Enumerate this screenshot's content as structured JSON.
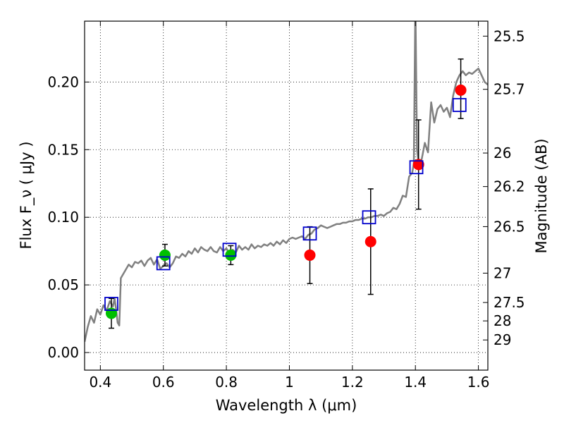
{
  "chart_data": {
    "type": "scatter",
    "xlabel": "Wavelength  λ (μm)",
    "ylabel": "Flux  F_ν  ( μJy )",
    "y2label": "Magnitude (AB)",
    "xlim": [
      0.35,
      1.63
    ],
    "ylim": [
      -0.013,
      0.245
    ],
    "grid": true,
    "x_ticks": [
      {
        "value": 0.4,
        "label": "0.4"
      },
      {
        "value": 0.6,
        "label": "0.6"
      },
      {
        "value": 0.8,
        "label": "0.8"
      },
      {
        "value": 1.0,
        "label": "1"
      },
      {
        "value": 1.2,
        "label": "1.2"
      },
      {
        "value": 1.4,
        "label": "1.4"
      },
      {
        "value": 1.6,
        "label": "1.6"
      }
    ],
    "y_ticks": [
      {
        "value": 0.0,
        "label": "0.00"
      },
      {
        "value": 0.05,
        "label": "0.05"
      },
      {
        "value": 0.1,
        "label": "0.10"
      },
      {
        "value": 0.15,
        "label": "0.15"
      },
      {
        "value": 0.2,
        "label": "0.20"
      }
    ],
    "mag_ticks": [
      {
        "flux": 0.2339,
        "label": "25.5"
      },
      {
        "flux": 0.1946,
        "label": "25.7"
      },
      {
        "flux": 0.1475,
        "label": "26"
      },
      {
        "flux": 0.1227,
        "label": "26.2"
      },
      {
        "flux": 0.0931,
        "label": "26.5"
      },
      {
        "flux": 0.0587,
        "label": "27"
      },
      {
        "flux": 0.037,
        "label": "27.5"
      },
      {
        "flux": 0.0234,
        "label": "28"
      },
      {
        "flux": 0.0093,
        "label": "29"
      }
    ],
    "colors": {
      "model": "#808080",
      "green_points": "#00c000",
      "red_points": "#ff0000",
      "model_boxes": "#0000cc",
      "errorbar": "#000000"
    },
    "series": [
      {
        "type": "line",
        "points": [
          [
            0.35,
            0.008
          ],
          [
            0.36,
            0.019
          ],
          [
            0.37,
            0.027
          ],
          [
            0.38,
            0.022
          ],
          [
            0.39,
            0.032
          ],
          [
            0.4,
            0.028
          ],
          [
            0.41,
            0.035
          ],
          [
            0.42,
            0.031
          ],
          [
            0.43,
            0.038
          ],
          [
            0.44,
            0.034
          ],
          [
            0.445,
            0.04
          ],
          [
            0.45,
            0.032
          ],
          [
            0.455,
            0.022
          ],
          [
            0.46,
            0.02
          ],
          [
            0.465,
            0.055
          ],
          [
            0.47,
            0.057
          ],
          [
            0.48,
            0.061
          ],
          [
            0.49,
            0.065
          ],
          [
            0.5,
            0.063
          ],
          [
            0.51,
            0.067
          ],
          [
            0.52,
            0.066
          ],
          [
            0.53,
            0.068
          ],
          [
            0.54,
            0.064
          ],
          [
            0.55,
            0.068
          ],
          [
            0.56,
            0.07
          ],
          [
            0.57,
            0.065
          ],
          [
            0.58,
            0.069
          ],
          [
            0.59,
            0.062
          ],
          [
            0.6,
            0.064
          ],
          [
            0.61,
            0.066
          ],
          [
            0.62,
            0.063
          ],
          [
            0.63,
            0.066
          ],
          [
            0.64,
            0.071
          ],
          [
            0.65,
            0.07
          ],
          [
            0.66,
            0.073
          ],
          [
            0.67,
            0.071
          ],
          [
            0.68,
            0.075
          ],
          [
            0.69,
            0.073
          ],
          [
            0.7,
            0.077
          ],
          [
            0.71,
            0.074
          ],
          [
            0.72,
            0.078
          ],
          [
            0.73,
            0.076
          ],
          [
            0.74,
            0.075
          ],
          [
            0.75,
            0.078
          ],
          [
            0.76,
            0.075
          ],
          [
            0.77,
            0.074
          ],
          [
            0.78,
            0.078
          ],
          [
            0.79,
            0.075
          ],
          [
            0.8,
            0.077
          ],
          [
            0.81,
            0.073
          ],
          [
            0.82,
            0.076
          ],
          [
            0.83,
            0.074
          ],
          [
            0.84,
            0.079
          ],
          [
            0.85,
            0.076
          ],
          [
            0.86,
            0.078
          ],
          [
            0.87,
            0.076
          ],
          [
            0.88,
            0.08
          ],
          [
            0.89,
            0.077
          ],
          [
            0.9,
            0.079
          ],
          [
            0.91,
            0.078
          ],
          [
            0.92,
            0.08
          ],
          [
            0.93,
            0.079
          ],
          [
            0.94,
            0.081
          ],
          [
            0.95,
            0.079
          ],
          [
            0.96,
            0.082
          ],
          [
            0.97,
            0.08
          ],
          [
            0.98,
            0.083
          ],
          [
            0.99,
            0.081
          ],
          [
            1.0,
            0.084
          ],
          [
            1.01,
            0.085
          ],
          [
            1.02,
            0.084
          ],
          [
            1.03,
            0.085
          ],
          [
            1.04,
            0.086
          ],
          [
            1.05,
            0.084
          ],
          [
            1.06,
            0.087
          ],
          [
            1.07,
            0.088
          ],
          [
            1.08,
            0.091
          ],
          [
            1.09,
            0.092
          ],
          [
            1.1,
            0.094
          ],
          [
            1.11,
            0.093
          ],
          [
            1.12,
            0.092
          ],
          [
            1.13,
            0.093
          ],
          [
            1.14,
            0.094
          ],
          [
            1.15,
            0.095
          ],
          [
            1.16,
            0.095
          ],
          [
            1.17,
            0.096
          ],
          [
            1.18,
            0.096
          ],
          [
            1.19,
            0.097
          ],
          [
            1.2,
            0.097
          ],
          [
            1.21,
            0.098
          ],
          [
            1.22,
            0.098
          ],
          [
            1.23,
            0.099
          ],
          [
            1.24,
            0.099
          ],
          [
            1.25,
            0.1
          ],
          [
            1.26,
            0.1
          ],
          [
            1.27,
            0.101
          ],
          [
            1.28,
            0.101
          ],
          [
            1.29,
            0.102
          ],
          [
            1.3,
            0.101
          ],
          [
            1.31,
            0.103
          ],
          [
            1.32,
            0.104
          ],
          [
            1.33,
            0.107
          ],
          [
            1.34,
            0.106
          ],
          [
            1.35,
            0.11
          ],
          [
            1.36,
            0.116
          ],
          [
            1.37,
            0.115
          ],
          [
            1.38,
            0.13
          ],
          [
            1.39,
            0.133
          ],
          [
            1.395,
            0.14
          ],
          [
            1.4,
            0.26
          ],
          [
            1.405,
            0.15
          ],
          [
            1.41,
            0.14
          ],
          [
            1.42,
            0.143
          ],
          [
            1.43,
            0.155
          ],
          [
            1.44,
            0.148
          ],
          [
            1.45,
            0.185
          ],
          [
            1.46,
            0.17
          ],
          [
            1.47,
            0.18
          ],
          [
            1.48,
            0.183
          ],
          [
            1.49,
            0.178
          ],
          [
            1.5,
            0.181
          ],
          [
            1.51,
            0.174
          ],
          [
            1.52,
            0.19
          ],
          [
            1.53,
            0.2
          ],
          [
            1.54,
            0.205
          ],
          [
            1.55,
            0.208
          ],
          [
            1.56,
            0.205
          ],
          [
            1.57,
            0.207
          ],
          [
            1.58,
            0.206
          ],
          [
            1.59,
            0.208
          ],
          [
            1.6,
            0.21
          ],
          [
            1.61,
            0.205
          ],
          [
            1.62,
            0.2
          ],
          [
            1.63,
            0.198
          ]
        ]
      },
      {
        "type": "scatter",
        "marker": "circle",
        "color_key": "green_points",
        "points": [
          [
            0.435,
            0.029
          ],
          [
            0.605,
            0.072
          ],
          [
            0.814,
            0.072
          ]
        ],
        "yerr": [
          [
            0.011,
            0.011
          ],
          [
            0.008,
            0.008
          ],
          [
            0.007,
            0.007
          ]
        ]
      },
      {
        "type": "scatter",
        "marker": "circle",
        "color_key": "red_points",
        "points": [
          [
            1.065,
            0.072
          ],
          [
            1.258,
            0.082
          ],
          [
            1.41,
            0.139
          ],
          [
            1.544,
            0.194
          ]
        ],
        "yerr": [
          [
            0.021,
            0.021
          ],
          [
            0.039,
            0.039
          ],
          [
            0.033,
            0.033
          ],
          [
            0.021,
            0.023
          ]
        ]
      },
      {
        "type": "scatter",
        "marker": "square",
        "color_key": "model_boxes",
        "points": [
          [
            0.435,
            0.036
          ],
          [
            0.6,
            0.066
          ],
          [
            0.81,
            0.076
          ],
          [
            1.065,
            0.088
          ],
          [
            1.253,
            0.1
          ],
          [
            1.403,
            0.137
          ],
          [
            1.54,
            0.183
          ]
        ]
      }
    ]
  }
}
